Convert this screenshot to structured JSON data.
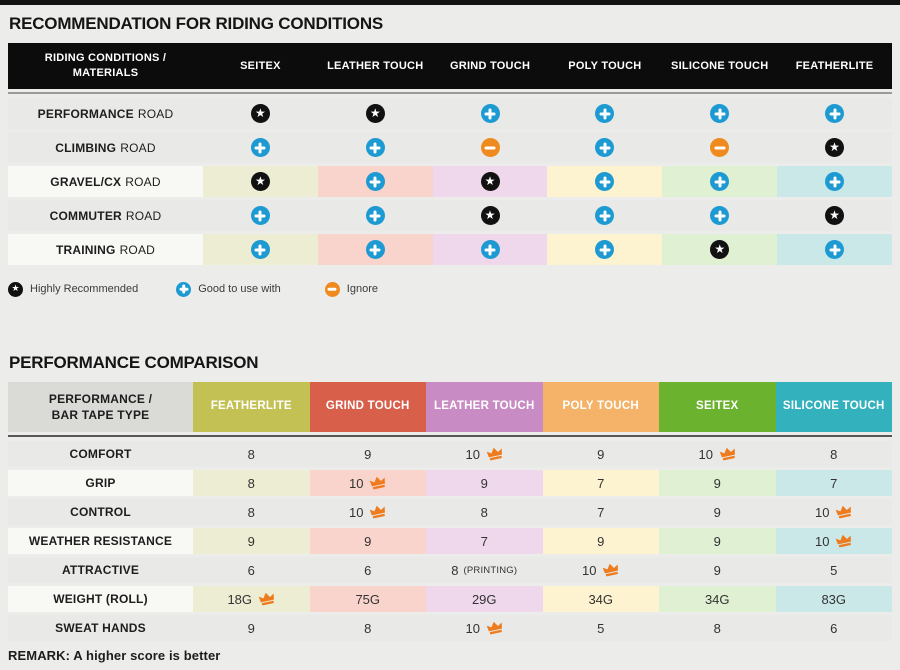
{
  "colors": {
    "page_bg": "#ececea",
    "plain_row_bg": "#e9eae7",
    "colored_label_bg": "#f8f8f4",
    "column_tints": [
      "#ededd3",
      "#f9d4cd",
      "#efd8ec",
      "#fdf3d0",
      "#dff0d3",
      "#cbe8e9"
    ],
    "icon_blue": "#1e9ad3",
    "icon_orange": "#ef8b1e",
    "crown_orange": "#ee7c1f"
  },
  "section1": {
    "title": "RECOMMENDATION FOR RIDING CONDITIONS",
    "header": [
      "RIDING CONDITIONS / MATERIALS",
      "SEITEX",
      "LEATHER TOUCH",
      "GRIND TOUCH",
      "POLY TOUCH",
      "SILICONE TOUCH",
      "FEATHERLITE"
    ],
    "rows": [
      {
        "label_bold": "PERFORMANCE",
        "label_rest": "ROAD",
        "colored": false,
        "cells": [
          "star",
          "star",
          "plus",
          "plus",
          "plus",
          "plus"
        ]
      },
      {
        "label_bold": "CLIMBING",
        "label_rest": "ROAD",
        "colored": false,
        "cells": [
          "plus",
          "plus",
          "minus",
          "plus",
          "minus",
          "star"
        ]
      },
      {
        "label_bold": "GRAVEL/CX",
        "label_rest": "ROAD",
        "colored": true,
        "cells": [
          "star",
          "plus",
          "star",
          "plus",
          "plus",
          "plus"
        ]
      },
      {
        "label_bold": "COMMUTER",
        "label_rest": "ROAD",
        "colored": false,
        "cells": [
          "plus",
          "plus",
          "star",
          "plus",
          "plus",
          "star"
        ]
      },
      {
        "label_bold": "TRAINING",
        "label_rest": "ROAD",
        "colored": true,
        "cells": [
          "plus",
          "plus",
          "plus",
          "plus",
          "star",
          "plus"
        ]
      }
    ],
    "legend": [
      {
        "icon": "star",
        "label": "Highly Recommended"
      },
      {
        "icon": "plus",
        "label": "Good to use with"
      },
      {
        "icon": "minus",
        "label": "Ignore"
      }
    ]
  },
  "section2": {
    "title": "PERFORMANCE COMPARISON",
    "header_label": "PERFORMANCE / BAR TAPE TYPE",
    "columns": [
      {
        "label": "FEATHERLITE",
        "color": "#c4c154"
      },
      {
        "label": "GRIND TOUCH",
        "color": "#d8604b"
      },
      {
        "label": "LEATHER TOUCH",
        "color": "#c88bc3"
      },
      {
        "label": "POLY TOUCH",
        "color": "#f5b269"
      },
      {
        "label": "SEITEX",
        "color": "#6bb22f"
      },
      {
        "label": "SILICONE TOUCH",
        "color": "#33b1bd"
      }
    ],
    "rows": [
      {
        "label": "COMFORT",
        "colored": false,
        "cells": [
          {
            "v": "8"
          },
          {
            "v": "9"
          },
          {
            "v": "10",
            "crown": true
          },
          {
            "v": "9"
          },
          {
            "v": "10",
            "crown": true
          },
          {
            "v": "8"
          }
        ]
      },
      {
        "label": "GRIP",
        "colored": true,
        "cells": [
          {
            "v": "8"
          },
          {
            "v": "10",
            "crown": true
          },
          {
            "v": "9"
          },
          {
            "v": "7"
          },
          {
            "v": "9"
          },
          {
            "v": "7"
          }
        ]
      },
      {
        "label": "CONTROL",
        "colored": false,
        "cells": [
          {
            "v": "8"
          },
          {
            "v": "10",
            "crown": true
          },
          {
            "v": "8"
          },
          {
            "v": "7"
          },
          {
            "v": "9"
          },
          {
            "v": "10",
            "crown": true
          }
        ]
      },
      {
        "label": "WEATHER RESISTANCE",
        "colored": true,
        "cells": [
          {
            "v": "9"
          },
          {
            "v": "9"
          },
          {
            "v": "7"
          },
          {
            "v": "9"
          },
          {
            "v": "9"
          },
          {
            "v": "10",
            "crown": true
          }
        ]
      },
      {
        "label": "ATTRACTIVE",
        "colored": false,
        "cells": [
          {
            "v": "6"
          },
          {
            "v": "6"
          },
          {
            "v": "8",
            "suffix": "(PRINTING)"
          },
          {
            "v": "10",
            "crown": true
          },
          {
            "v": "9"
          },
          {
            "v": "5"
          }
        ]
      },
      {
        "label": "WEIGHT (ROLL)",
        "colored": true,
        "cells": [
          {
            "v": "18G",
            "crown": true
          },
          {
            "v": "75G"
          },
          {
            "v": "29G"
          },
          {
            "v": "34G"
          },
          {
            "v": "34G"
          },
          {
            "v": "83G"
          }
        ]
      },
      {
        "label": "SWEAT HANDS",
        "colored": false,
        "cells": [
          {
            "v": "9"
          },
          {
            "v": "8"
          },
          {
            "v": "10",
            "crown": true
          },
          {
            "v": "5"
          },
          {
            "v": "8"
          },
          {
            "v": "6"
          }
        ]
      }
    ],
    "remark": "REMARK: A higher score is better"
  },
  "chart_data": [
    {
      "type": "table",
      "title": "RECOMMENDATION FOR RIDING CONDITIONS",
      "columns": [
        "SEITEX",
        "LEATHER TOUCH",
        "GRIND TOUCH",
        "POLY TOUCH",
        "SILICONE TOUCH",
        "FEATHERLITE"
      ],
      "row_labels": [
        "PERFORMANCE ROAD",
        "CLIMBING ROAD",
        "GRAVEL/CX ROAD",
        "COMMUTER ROAD",
        "TRAINING ROAD"
      ],
      "values": [
        [
          "highly-recommended",
          "highly-recommended",
          "good-to-use-with",
          "good-to-use-with",
          "good-to-use-with",
          "good-to-use-with"
        ],
        [
          "good-to-use-with",
          "good-to-use-with",
          "ignore",
          "good-to-use-with",
          "ignore",
          "highly-recommended"
        ],
        [
          "highly-recommended",
          "good-to-use-with",
          "highly-recommended",
          "good-to-use-with",
          "good-to-use-with",
          "good-to-use-with"
        ],
        [
          "good-to-use-with",
          "good-to-use-with",
          "highly-recommended",
          "good-to-use-with",
          "good-to-use-with",
          "highly-recommended"
        ],
        [
          "good-to-use-with",
          "good-to-use-with",
          "good-to-use-with",
          "good-to-use-with",
          "highly-recommended",
          "good-to-use-with"
        ]
      ],
      "legend": [
        "Highly Recommended",
        "Good to use with",
        "Ignore"
      ]
    },
    {
      "type": "table",
      "title": "PERFORMANCE COMPARISON",
      "columns": [
        "FEATHERLITE",
        "GRIND TOUCH",
        "LEATHER TOUCH",
        "POLY TOUCH",
        "SEITEX",
        "SILICONE TOUCH"
      ],
      "row_labels": [
        "COMFORT",
        "GRIP",
        "CONTROL",
        "WEATHER RESISTANCE",
        "ATTRACTIVE",
        "WEIGHT (ROLL)",
        "SWEAT HANDS"
      ],
      "values": [
        [
          "8",
          "9",
          "10 (best)",
          "9",
          "10 (best)",
          "8"
        ],
        [
          "8",
          "10 (best)",
          "9",
          "7",
          "9",
          "7"
        ],
        [
          "8",
          "10 (best)",
          "8",
          "7",
          "9",
          "10 (best)"
        ],
        [
          "9",
          "9",
          "7",
          "9",
          "9",
          "10 (best)"
        ],
        [
          "6",
          "6",
          "8 (PRINTING)",
          "10 (best)",
          "9",
          "5"
        ],
        [
          "18G (best)",
          "75G",
          "29G",
          "34G",
          "34G",
          "83G"
        ],
        [
          "9",
          "8",
          "10 (best)",
          "5",
          "8",
          "6"
        ]
      ],
      "note": "REMARK: A higher score is better"
    }
  ]
}
